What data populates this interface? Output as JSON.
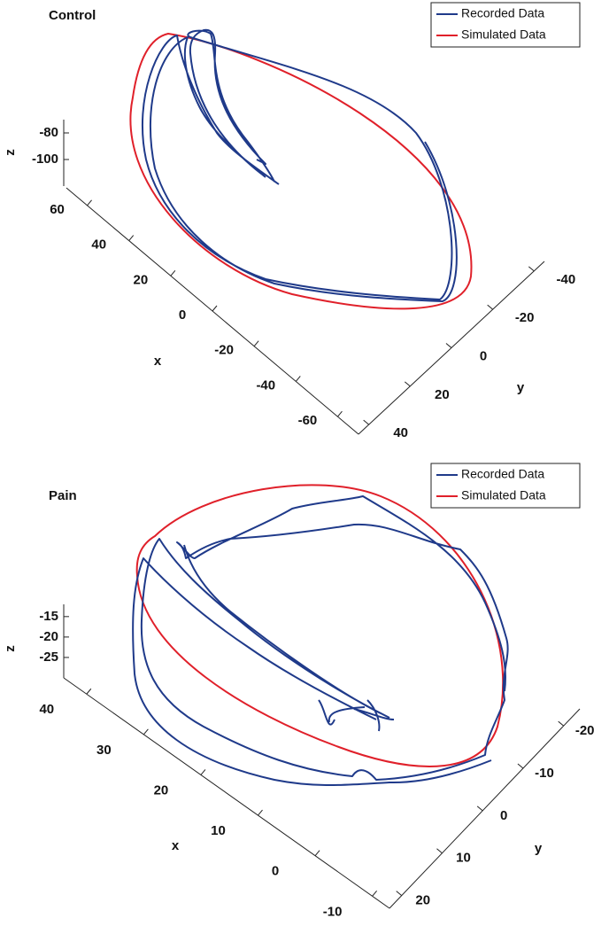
{
  "chart_data": [
    {
      "type": "line3d",
      "title": "Control",
      "xlabel": "x",
      "ylabel": "y",
      "zlabel": "z",
      "xlim": [
        70,
        -70
      ],
      "xticks": [
        60,
        40,
        20,
        0,
        -20,
        -40,
        -60
      ],
      "ylim": [
        45,
        -45
      ],
      "yticks": [
        40,
        20,
        0,
        -20,
        -40
      ],
      "zlim": [
        -70,
        -120
      ],
      "zticks": [
        -80,
        -100
      ],
      "series": [
        {
          "name": "Recorded Data",
          "color": "#1f3a8a"
        },
        {
          "name": "Simulated Data",
          "color": "#e0202a"
        }
      ]
    },
    {
      "type": "line3d",
      "title": "Pain",
      "xlabel": "x",
      "ylabel": "y",
      "zlabel": "z",
      "xlim": [
        44,
        -13
      ],
      "xticks": [
        40,
        30,
        20,
        10,
        0,
        -10
      ],
      "ylim": [
        23,
        -24
      ],
      "yticks": [
        20,
        10,
        0,
        -10,
        -20
      ],
      "zlim": [
        -12,
        -30
      ],
      "zticks": [
        -15,
        -20,
        -25
      ],
      "series": [
        {
          "name": "Recorded Data",
          "color": "#1f3a8a"
        },
        {
          "name": "Simulated Data",
          "color": "#e0202a"
        }
      ]
    }
  ]
}
